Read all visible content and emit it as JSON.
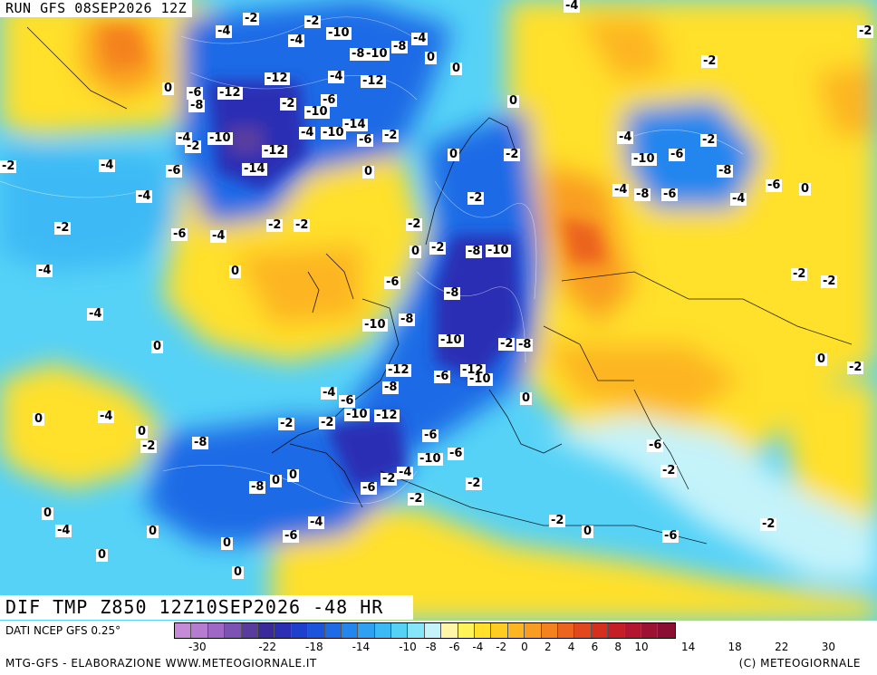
{
  "run_label": "RUN GFS 08SEP2026 12Z",
  "map_title": "DIF TMP Z850 12Z10SEP2026 -48 HR",
  "source_label": "DATI NCEP GFS 0.25°",
  "credit_left": "MTG-GFS - ELABORAZIONE WWW.METEOGIORNALE.IT",
  "credit_right": "(C) METEOGIORNALE",
  "legend": {
    "colors": [
      "#c58bd6",
      "#b57cd0",
      "#9f68c4",
      "#7c52b2",
      "#5a3c9f",
      "#3a2a9a",
      "#2c2fb4",
      "#1f40cc",
      "#1c55dc",
      "#1d6be6",
      "#2286ee",
      "#2ea1f3",
      "#3cbaf5",
      "#56d2f7",
      "#86e5f8",
      "#c4f3fa",
      "#fff6a8",
      "#fff35a",
      "#ffe02b",
      "#ffcc22",
      "#fdb522",
      "#f99d22",
      "#f4821f",
      "#ec641d",
      "#e1481d",
      "#d5301e",
      "#c61e27",
      "#b3172f",
      "#9c1233",
      "#8a0f33"
    ],
    "ticks": [
      "-30",
      "-22",
      "-18",
      "-14",
      "-10",
      "-8",
      "-6",
      "-4",
      "-2",
      "0",
      "2",
      "4",
      "6",
      "8",
      "10",
      "14",
      "18",
      "22",
      "30"
    ]
  },
  "contour_labels": [
    "-2",
    "-4",
    "-2",
    "-4",
    "-10",
    "-8",
    "-10",
    "-8",
    "-4",
    "0",
    "-4",
    "-2",
    "-12",
    "-4",
    "-12",
    "0",
    "-6",
    "-12",
    "-8",
    "-2",
    "-6",
    "-10",
    "-14",
    "-4",
    "-10",
    "-6",
    "-2",
    "0",
    "-2",
    "-4",
    "-10",
    "-12",
    "-14",
    "-2",
    "-6",
    "0",
    "-4",
    "0",
    "-2",
    "-4",
    "-2",
    "-10",
    "-6",
    "-8",
    "-6",
    "-8",
    "-4",
    "0",
    "-2",
    "-8",
    "-10",
    "-4",
    "-6",
    "-4",
    "-2",
    "-2",
    "0",
    "-6",
    "-4",
    "-2",
    "-4",
    "-2",
    "0",
    "-2",
    "-8",
    "-10",
    "0",
    "-6",
    "-2",
    "-2",
    "-2",
    "-4",
    "-10",
    "-8",
    "-2",
    "-8",
    "-12",
    "-6",
    "-12",
    "-10",
    "0",
    "-2",
    "0",
    "0",
    "-4",
    "-6",
    "-10",
    "-12",
    "-8",
    "-2",
    "-2",
    "0",
    "-4",
    "0",
    "-2",
    "-8",
    "-6",
    "-6",
    "-10",
    "-6",
    "-8",
    "0",
    "0",
    "-2",
    "-4",
    "-6",
    "-2",
    "-2",
    "-4",
    "-6",
    "0",
    "0",
    "0",
    "0",
    "-2",
    "-2",
    "0",
    "-2",
    "-6",
    "-4",
    "0"
  ]
}
